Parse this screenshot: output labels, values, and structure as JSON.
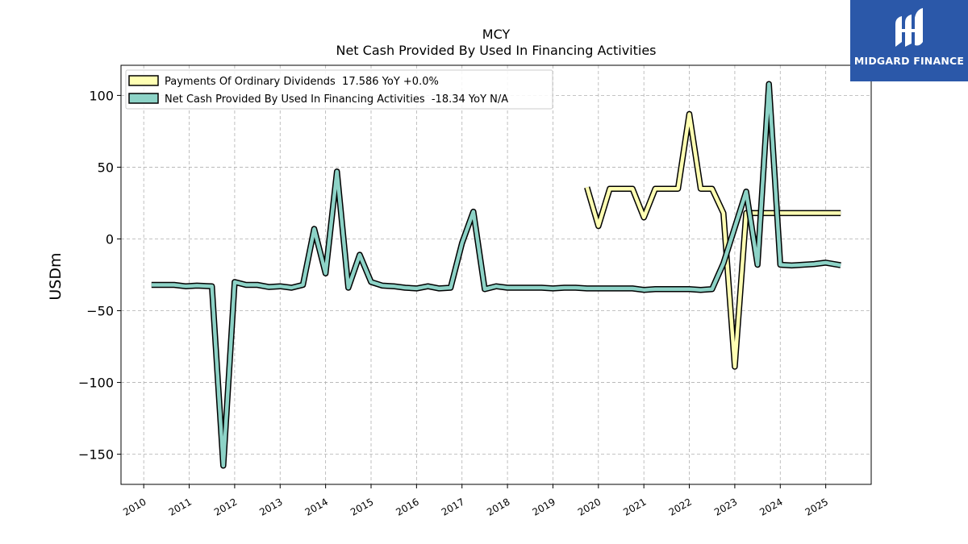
{
  "chart_data": {
    "type": "line",
    "title": "MCY",
    "subtitle": "Net Cash Provided By Used In Financing Activities",
    "xlabel": "",
    "ylabel": "USDm",
    "xlim": [
      2009.5,
      2026.0
    ],
    "ylim": [
      -171,
      121
    ],
    "yticks": [
      100,
      50,
      0,
      -50,
      -100,
      -150
    ],
    "ytick_labels": [
      "100",
      "50",
      "0",
      "−50",
      "−100",
      "−150"
    ],
    "xticks": [
      2010,
      2011,
      2012,
      2013,
      2014,
      2015,
      2016,
      2017,
      2018,
      2019,
      2020,
      2021,
      2022,
      2023,
      2024,
      2025
    ],
    "xtick_labels": [
      "2010",
      "2011",
      "2012",
      "2013",
      "2014",
      "2015",
      "2016",
      "2017",
      "2018",
      "2019",
      "2020",
      "2021",
      "2022",
      "2023",
      "2024",
      "2025"
    ],
    "grid": true,
    "legend_position": "top-left",
    "series": [
      {
        "name": "Payments Of Ordinary Dividends  17.586 YoY +0.0%",
        "color": "#ffffb3",
        "points": [
          [
            2019.75,
            36
          ],
          [
            2020.0,
            9
          ],
          [
            2020.25,
            35
          ],
          [
            2020.5,
            35
          ],
          [
            2020.75,
            35
          ],
          [
            2021.0,
            15
          ],
          [
            2021.25,
            35
          ],
          [
            2021.5,
            35
          ],
          [
            2021.75,
            35
          ],
          [
            2022.0,
            87
          ],
          [
            2022.25,
            35
          ],
          [
            2022.5,
            35
          ],
          [
            2022.75,
            18
          ],
          [
            2023.0,
            -89
          ],
          [
            2023.25,
            18
          ],
          [
            2023.5,
            18
          ],
          [
            2023.75,
            18
          ],
          [
            2024.0,
            18
          ],
          [
            2024.25,
            18
          ],
          [
            2024.5,
            18
          ],
          [
            2024.75,
            18
          ],
          [
            2025.0,
            18
          ],
          [
            2025.33,
            18
          ]
        ]
      },
      {
        "name": "Net Cash Provided By Used In Financing Activities  -18.34 YoY N/A",
        "color": "#8dd3c7",
        "points": [
          [
            2010.17,
            -32
          ],
          [
            2010.42,
            -32
          ],
          [
            2010.67,
            -32
          ],
          [
            2010.92,
            -33
          ],
          [
            2011.17,
            -32.5
          ],
          [
            2011.5,
            -33
          ],
          [
            2011.75,
            -158
          ],
          [
            2012.0,
            -30
          ],
          [
            2012.25,
            -32
          ],
          [
            2012.5,
            -32
          ],
          [
            2012.75,
            -33.5
          ],
          [
            2013.0,
            -33
          ],
          [
            2013.25,
            -34
          ],
          [
            2013.5,
            -32
          ],
          [
            2013.75,
            7
          ],
          [
            2014.0,
            -24
          ],
          [
            2014.25,
            47
          ],
          [
            2014.5,
            -34
          ],
          [
            2014.75,
            -11
          ],
          [
            2015.0,
            -30
          ],
          [
            2015.25,
            -32.5
          ],
          [
            2015.5,
            -33
          ],
          [
            2015.75,
            -34
          ],
          [
            2016.0,
            -34.5
          ],
          [
            2016.25,
            -33
          ],
          [
            2016.5,
            -34.5
          ],
          [
            2016.75,
            -34
          ],
          [
            2017.0,
            -3
          ],
          [
            2017.25,
            19
          ],
          [
            2017.5,
            -35
          ],
          [
            2017.75,
            -33
          ],
          [
            2018.0,
            -34
          ],
          [
            2018.25,
            -34
          ],
          [
            2018.5,
            -34
          ],
          [
            2018.75,
            -34
          ],
          [
            2019.0,
            -34.5
          ],
          [
            2019.25,
            -34
          ],
          [
            2019.5,
            -34
          ],
          [
            2019.75,
            -34.5
          ],
          [
            2020.0,
            -34.5
          ],
          [
            2020.25,
            -34.5
          ],
          [
            2020.5,
            -34.5
          ],
          [
            2020.75,
            -34.5
          ],
          [
            2021.0,
            -35.5
          ],
          [
            2021.25,
            -35
          ],
          [
            2021.5,
            -35
          ],
          [
            2021.75,
            -35
          ],
          [
            2022.0,
            -35
          ],
          [
            2022.25,
            -35.5
          ],
          [
            2022.5,
            -35
          ],
          [
            2022.75,
            -17
          ],
          [
            2023.0,
            8
          ],
          [
            2023.25,
            33
          ],
          [
            2023.5,
            -18
          ],
          [
            2023.75,
            108
          ],
          [
            2024.0,
            -18
          ],
          [
            2024.25,
            -18.5
          ],
          [
            2024.5,
            -18
          ],
          [
            2024.75,
            -17.5
          ],
          [
            2025.0,
            -16.5
          ],
          [
            2025.33,
            -18.34
          ]
        ]
      }
    ]
  },
  "logo": {
    "text": "MIDGARD FINANCE",
    "background": "#2b58a9"
  }
}
